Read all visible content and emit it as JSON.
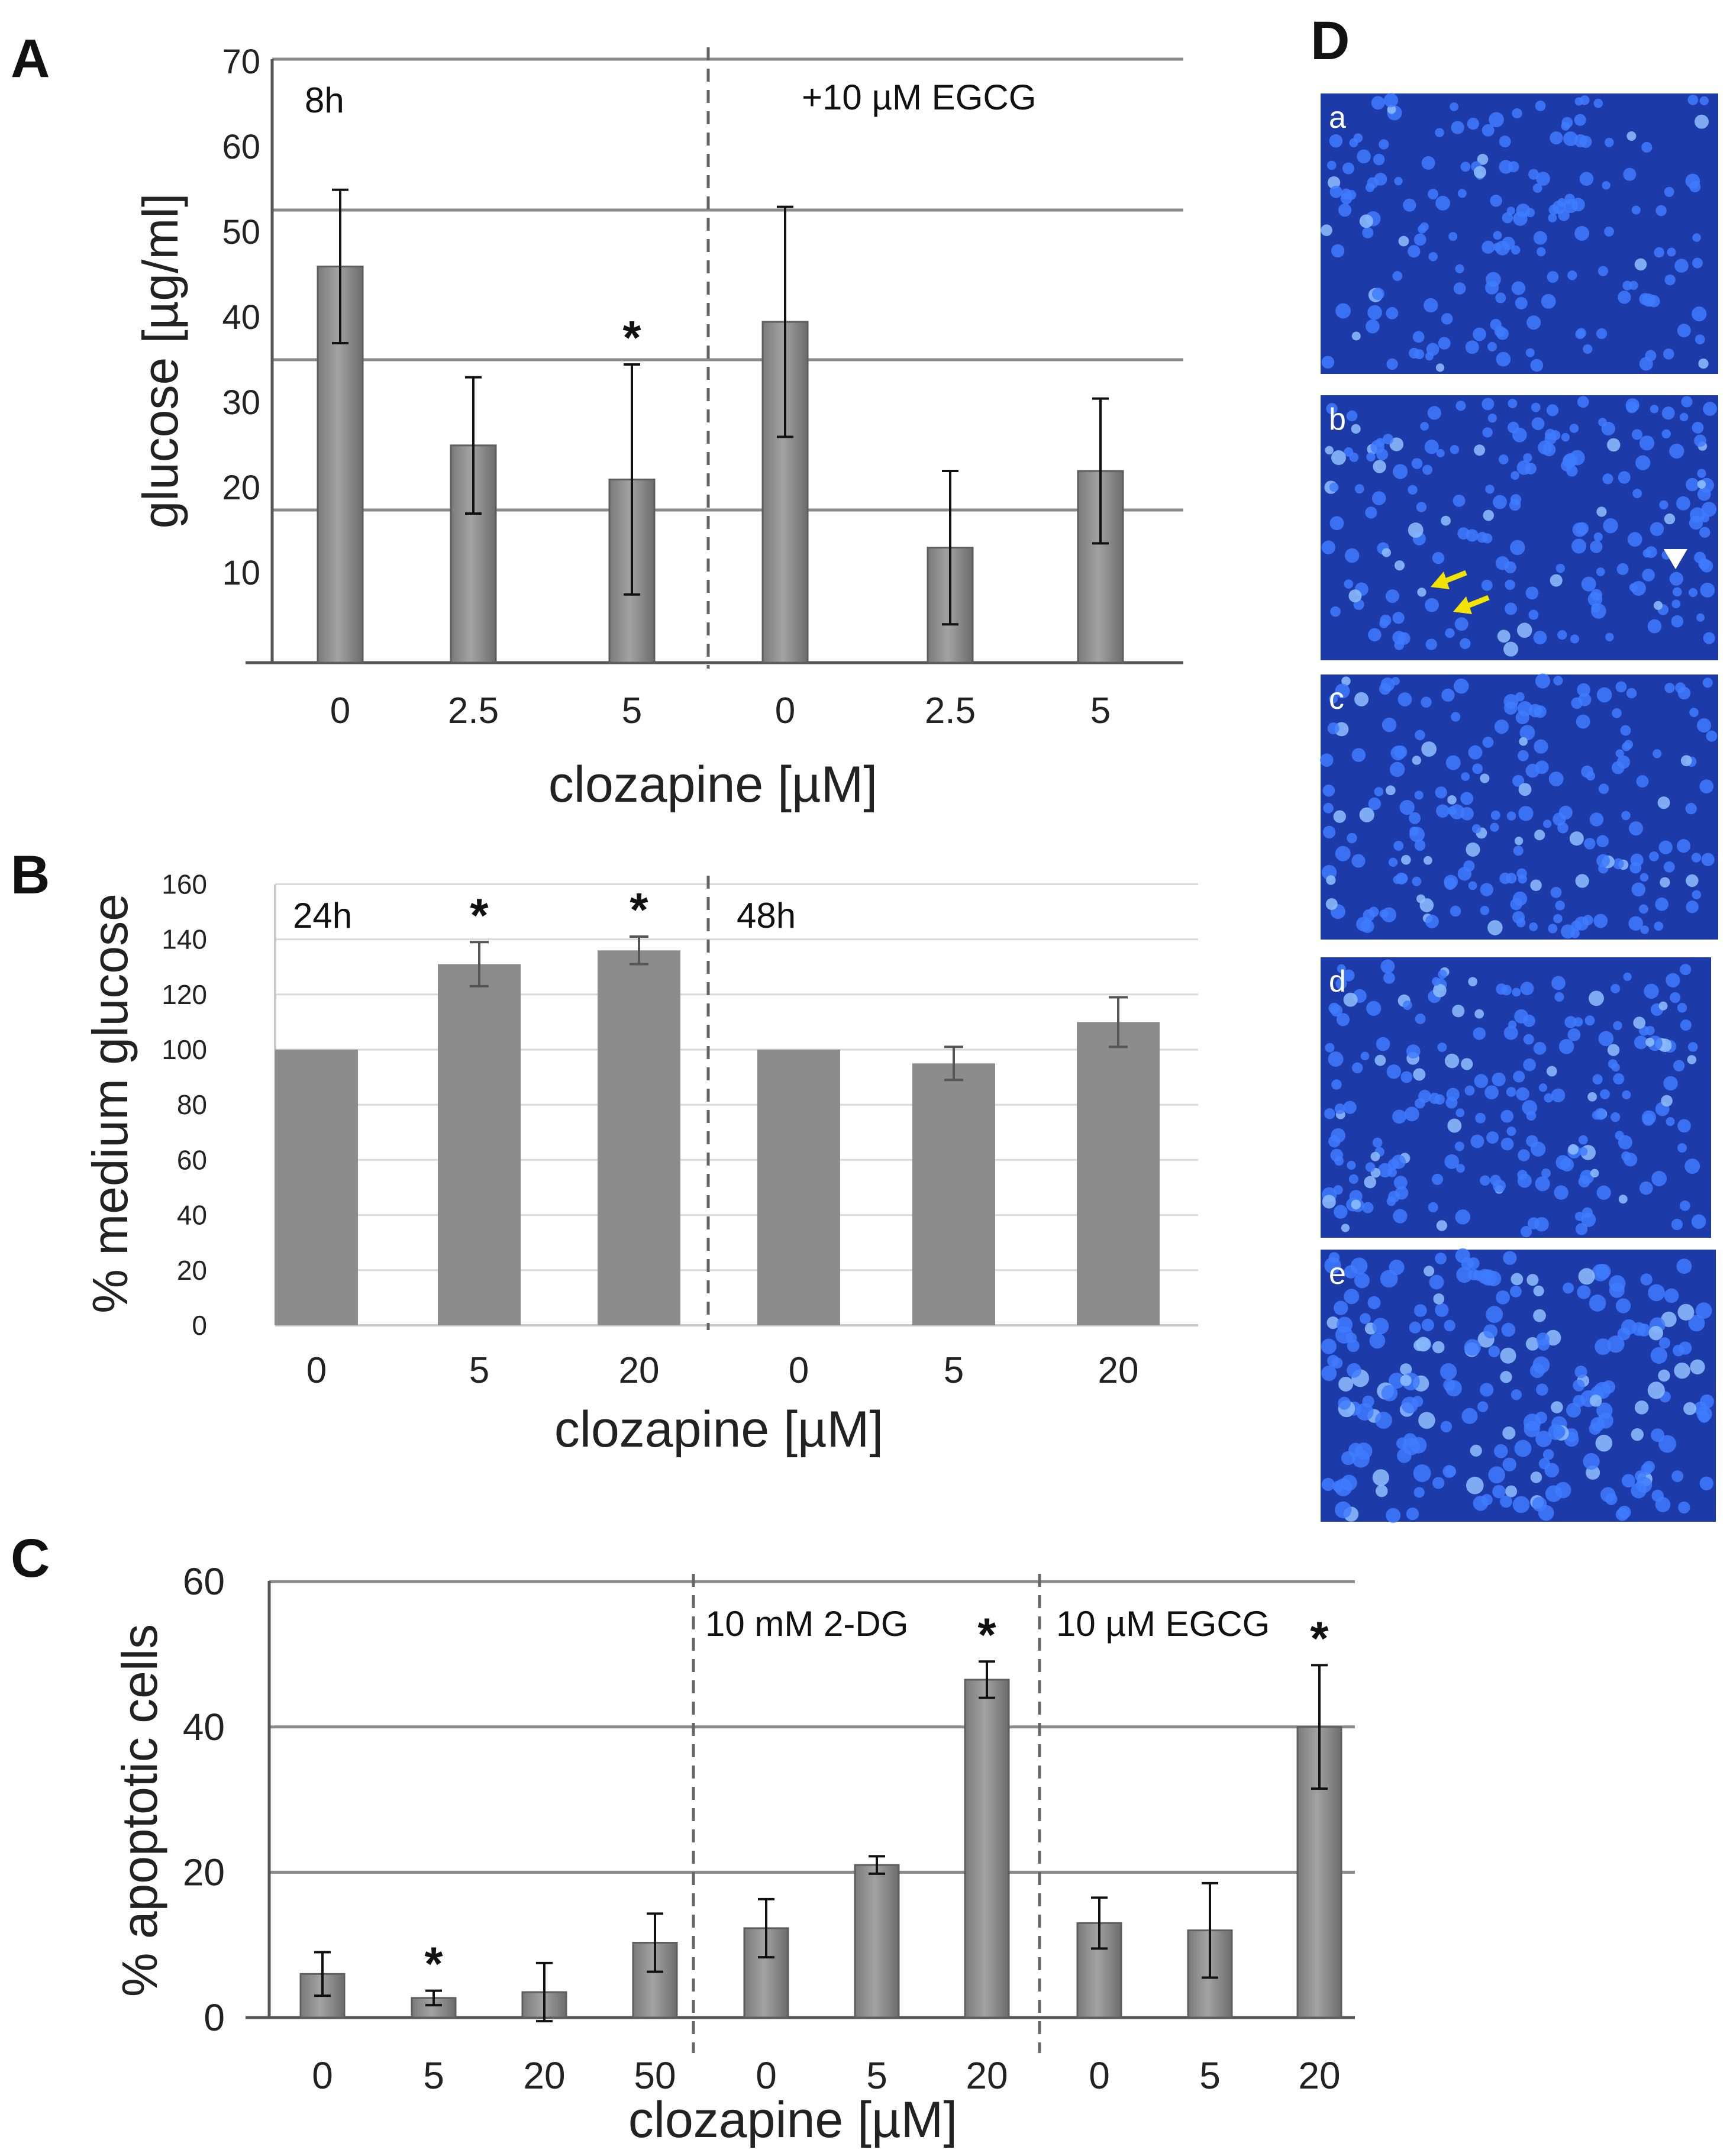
{
  "chart_data": [
    {
      "panel": "A",
      "type": "bar",
      "ylabel": "glucose [µg/ml]",
      "xlabel": "clozapine [µM]",
      "yticks": [
        "70",
        "60",
        "50",
        "40",
        "30",
        "20",
        "10"
      ],
      "ylim": [
        0,
        70
      ],
      "groups": [
        {
          "label": "8h",
          "categories": [
            "0",
            "2.5",
            "5"
          ],
          "values": [
            46.5,
            25.5,
            21.5
          ],
          "errors": [
            9.0,
            8.0,
            13.5
          ],
          "stars": [
            "",
            "",
            "*"
          ]
        },
        {
          "label": "+10 µM EGCG",
          "categories": [
            "0",
            "2.5",
            "5"
          ],
          "values": [
            40,
            13.5,
            22.5
          ],
          "errors": [
            13.5,
            9.0,
            8.5
          ],
          "stars": [
            "",
            "",
            ""
          ]
        }
      ]
    },
    {
      "panel": "B",
      "type": "bar",
      "ylabel": "% medium glucose",
      "xlabel": "clozapine [µM]",
      "yticks": [
        "160",
        "140",
        "120",
        "100",
        "80",
        "60",
        "40",
        "20",
        "0"
      ],
      "ylim": [
        0,
        160
      ],
      "groups": [
        {
          "label": "24h",
          "categories": [
            "0",
            "5",
            "20"
          ],
          "values": [
            100,
            131,
            136
          ],
          "errors": [
            0,
            8,
            5
          ],
          "stars": [
            "",
            "*",
            "*"
          ]
        },
        {
          "label": "48h",
          "categories": [
            "0",
            "5",
            "20"
          ],
          "values": [
            100,
            95,
            110
          ],
          "errors": [
            0,
            6,
            9
          ],
          "stars": [
            "",
            "",
            ""
          ]
        }
      ]
    },
    {
      "panel": "C",
      "type": "bar",
      "ylabel": "% apoptotic cells",
      "xlabel": "clozapine [µM]",
      "yticks": [
        "60",
        "40",
        "20",
        "0"
      ],
      "ylim": [
        0,
        60
      ],
      "groups": [
        {
          "label": "",
          "categories": [
            "0",
            "5",
            "20",
            "50"
          ],
          "values": [
            6,
            2.7,
            3.5,
            10.3
          ],
          "errors": [
            3,
            1,
            4,
            4
          ],
          "stars": [
            "",
            "*",
            "",
            ""
          ]
        },
        {
          "label": "10 mM 2-DG",
          "categories": [
            "0",
            "5",
            "20"
          ],
          "values": [
            12.3,
            21,
            46.5
          ],
          "errors": [
            4,
            1.2,
            2.5
          ],
          "stars": [
            "",
            "",
            "*"
          ]
        },
        {
          "label": "10 µM EGCG",
          "categories": [
            "0",
            "5",
            "20"
          ],
          "values": [
            13,
            12,
            40
          ],
          "errors": [
            3.5,
            6.5,
            8.5
          ],
          "stars": [
            "",
            "",
            "*"
          ]
        }
      ]
    }
  ],
  "panel_D": {
    "letter": "D",
    "images": [
      {
        "label": "a"
      },
      {
        "label": "b",
        "annotation": "yellow arrows and white arrowhead"
      },
      {
        "label": "c"
      },
      {
        "label": "d"
      },
      {
        "label": "e"
      }
    ]
  },
  "panel_letters": [
    "A",
    "B",
    "C",
    "D"
  ],
  "colors": {
    "bar": "#8c8c8c",
    "bar_edge": "#5e5e5e",
    "grid": "#8a8a8a",
    "micrograph_bg": "#1c3aa8",
    "nucleus": "#3f7bff",
    "arrow": "#f2e400"
  }
}
